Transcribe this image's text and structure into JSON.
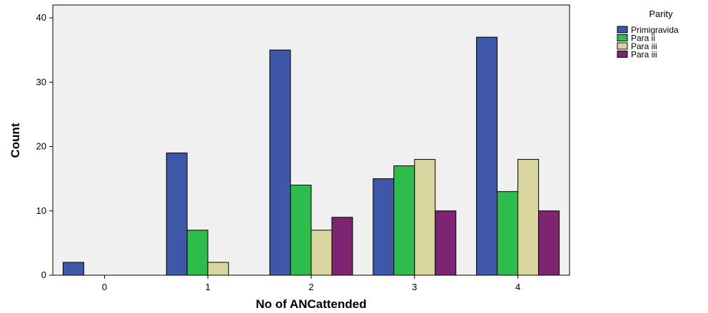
{
  "chart_data": {
    "type": "bar",
    "categories": [
      "0",
      "1",
      "2",
      "3",
      "4"
    ],
    "series": [
      {
        "name": "Primigravida",
        "color": "#3f57a8",
        "values": [
          2,
          19,
          35,
          15,
          37
        ]
      },
      {
        "name": "Para ii",
        "color": "#2ebc4c",
        "values": [
          0,
          7,
          14,
          17,
          13
        ]
      },
      {
        "name": "Para iii",
        "color": "#d9d59e",
        "values": [
          0,
          2,
          7,
          18,
          18
        ]
      },
      {
        "name": "Para iii",
        "color": "#7e2571",
        "values": [
          0,
          0,
          9,
          10,
          10
        ]
      }
    ],
    "xlabel": "No of ANCattended",
    "ylabel": "Count",
    "ylim": [
      0,
      42
    ],
    "yticks": [
      0,
      10,
      20,
      30,
      40
    ],
    "legend_title": "Parity",
    "legend_position": "top-right",
    "plot_background": "#f0f0f0",
    "grid": false
  }
}
